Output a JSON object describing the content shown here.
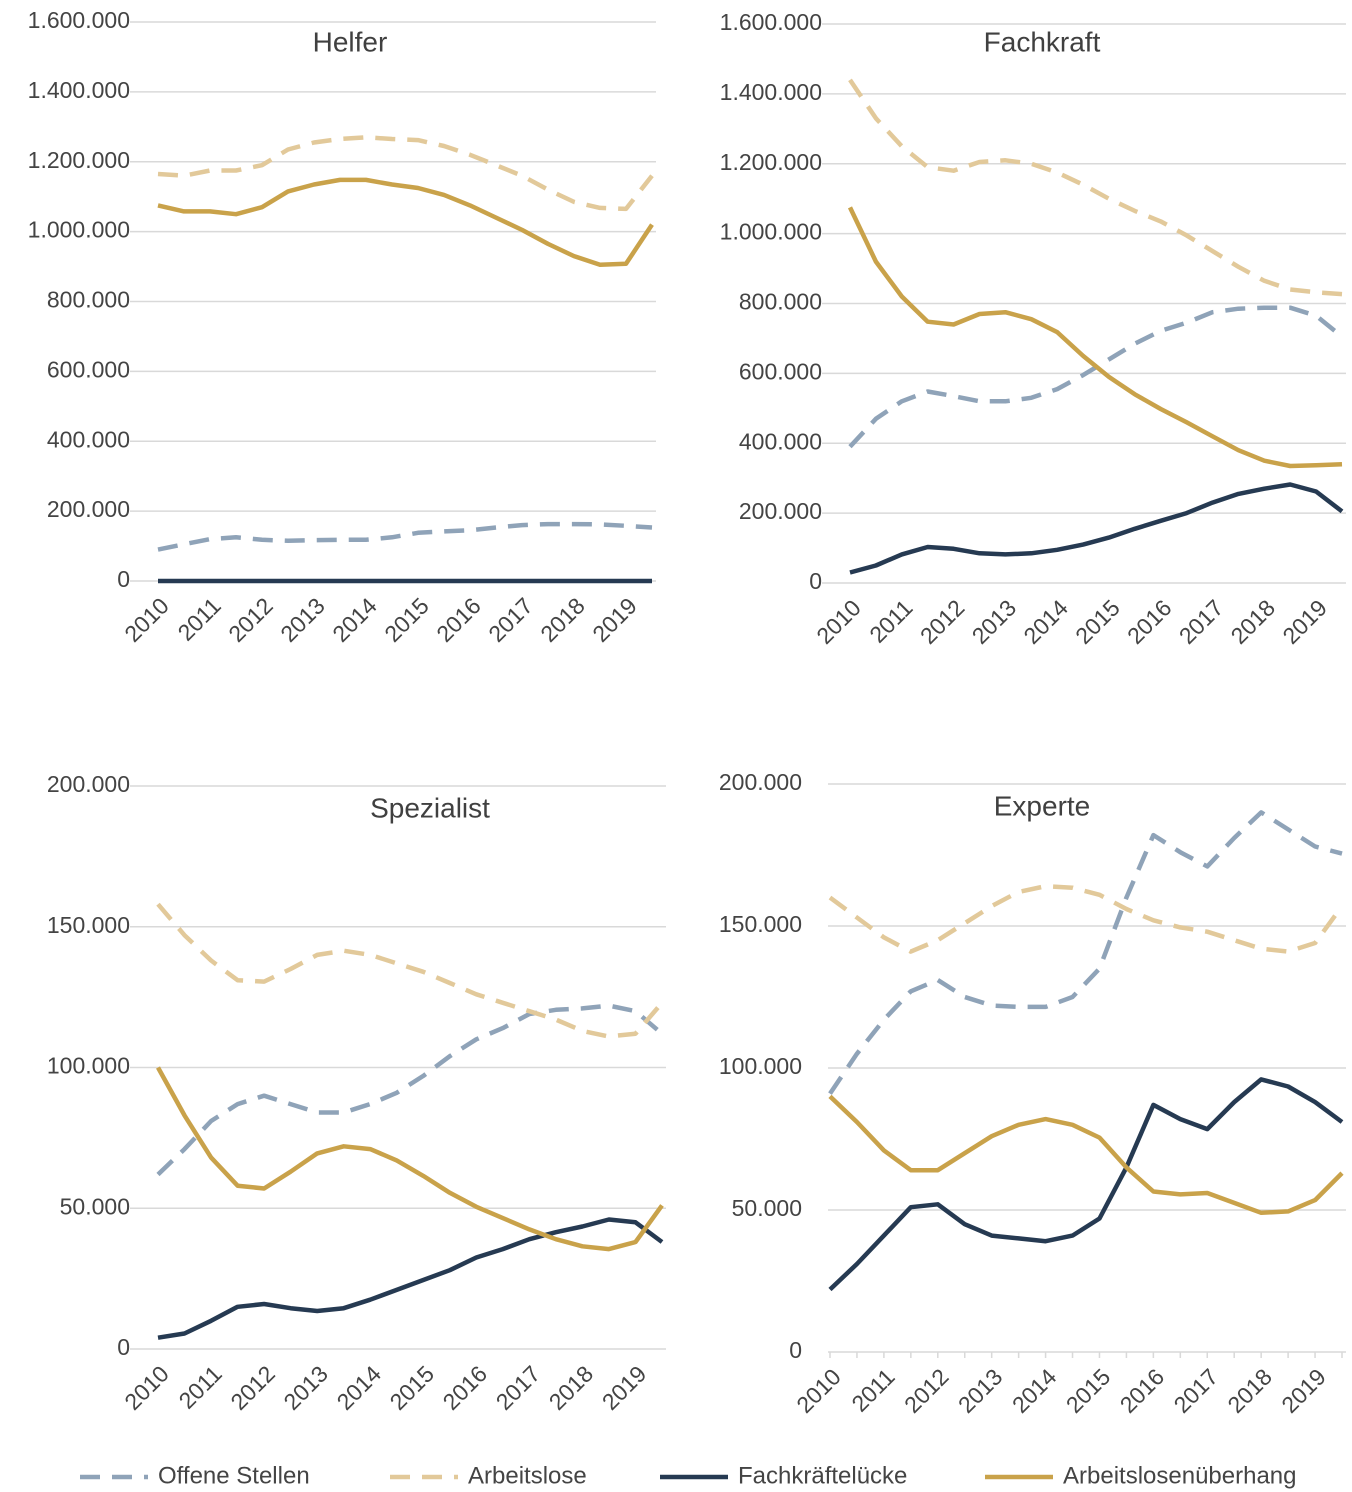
{
  "chart_data": [
    {
      "type": "line",
      "title": "Helfer",
      "categories": [
        "2010",
        null,
        "2011",
        null,
        "2012",
        null,
        "2013",
        null,
        "2014",
        null,
        "2015",
        null,
        "2016",
        null,
        "2017",
        null,
        "2018",
        null,
        "2019",
        null
      ],
      "ylim": [
        0,
        1600000
      ],
      "yticks": [
        0,
        {
          "value": 200000,
          "label": "200.000"
        },
        {
          "value": 400000,
          "label": "400.000"
        },
        {
          "value": 600000,
          "label": "600.000"
        },
        {
          "value": 800000,
          "label": "800.000"
        },
        {
          "value": 1000000,
          "label": "1.000.000"
        },
        {
          "value": 1200000,
          "label": "1.200.000"
        },
        {
          "value": 1400000,
          "label": "1.400.000"
        },
        {
          "value": 1600000,
          "label": "1.600.000"
        }
      ],
      "grid": true,
      "series": [
        {
          "name": "Offene Stellen",
          "color": "#8fa3b8",
          "dashed": true,
          "values": [
            90000,
            105000,
            120000,
            125000,
            118000,
            115000,
            117000,
            118000,
            118000,
            125000,
            138000,
            142000,
            145000,
            153000,
            160000,
            163000,
            163000,
            162000,
            158000,
            153000
          ]
        },
        {
          "name": "Arbeitslose",
          "color": "#e2c99a",
          "dashed": true,
          "values": [
            1165000,
            1160000,
            1175000,
            1175000,
            1190000,
            1235000,
            1255000,
            1265000,
            1270000,
            1265000,
            1262000,
            1245000,
            1220000,
            1190000,
            1160000,
            1120000,
            1085000,
            1068000,
            1065000,
            1160000
          ]
        },
        {
          "name": "Fachkräftelücke",
          "color": "#263a52",
          "dashed": false,
          "values": [
            0,
            0,
            0,
            0,
            0,
            0,
            0,
            0,
            0,
            0,
            0,
            0,
            0,
            0,
            0,
            0,
            0,
            0,
            0,
            0
          ]
        },
        {
          "name": "Arbeitslosenüberhang",
          "color": "#c9a24a",
          "dashed": false,
          "values": [
            1075000,
            1058000,
            1058000,
            1050000,
            1070000,
            1115000,
            1135000,
            1148000,
            1148000,
            1135000,
            1125000,
            1105000,
            1075000,
            1040000,
            1005000,
            965000,
            930000,
            905000,
            908000,
            1020000
          ]
        }
      ]
    },
    {
      "type": "line",
      "title": "Fachkraft",
      "categories": [
        "2010",
        null,
        "2011",
        null,
        "2012",
        null,
        "2013",
        null,
        "2014",
        null,
        "2015",
        null,
        "2016",
        null,
        "2017",
        null,
        "2018",
        null,
        "2019",
        null
      ],
      "ylim": [
        0,
        1600000
      ],
      "yticks": [
        0,
        {
          "value": 200000,
          "label": "200.000"
        },
        {
          "value": 400000,
          "label": "400.000"
        },
        {
          "value": 600000,
          "label": "600.000"
        },
        {
          "value": 800000,
          "label": "800.000"
        },
        {
          "value": 1000000,
          "label": "1.000.000"
        },
        {
          "value": 1200000,
          "label": "1.200.000"
        },
        {
          "value": 1400000,
          "label": "1.400.000"
        },
        {
          "value": 1600000,
          "label": "1.600.000"
        }
      ],
      "grid": true,
      "series": [
        {
          "name": "Offene Stellen",
          "color": "#8fa3b8",
          "dashed": true,
          "values": [
            390000,
            470000,
            520000,
            548000,
            535000,
            520000,
            520000,
            530000,
            555000,
            595000,
            640000,
            685000,
            722000,
            745000,
            775000,
            785000,
            788000,
            788000,
            765000,
            705000
          ]
        },
        {
          "name": "Arbeitslose",
          "color": "#e2c99a",
          "dashed": true,
          "values": [
            1440000,
            1330000,
            1250000,
            1190000,
            1180000,
            1205000,
            1210000,
            1200000,
            1175000,
            1140000,
            1100000,
            1065000,
            1035000,
            995000,
            950000,
            905000,
            865000,
            840000,
            832000,
            827000
          ]
        },
        {
          "name": "Fachkräftelücke",
          "color": "#263a52",
          "dashed": false,
          "values": [
            30000,
            50000,
            82000,
            103000,
            98000,
            85000,
            82000,
            85000,
            95000,
            110000,
            130000,
            155000,
            178000,
            200000,
            230000,
            255000,
            270000,
            282000,
            262000,
            205000
          ]
        },
        {
          "name": "Arbeitslosenüberhang",
          "color": "#c9a24a",
          "dashed": false,
          "values": [
            1075000,
            920000,
            820000,
            748000,
            740000,
            770000,
            775000,
            755000,
            718000,
            650000,
            590000,
            540000,
            498000,
            460000,
            420000,
            380000,
            350000,
            335000,
            337000,
            340000
          ]
        }
      ]
    },
    {
      "type": "line",
      "title": "Spezialist",
      "categories": [
        "2010",
        null,
        "2011",
        null,
        "2012",
        null,
        "2013",
        null,
        "2014",
        null,
        "2015",
        null,
        "2016",
        null,
        "2017",
        null,
        "2018",
        null,
        "2019",
        null
      ],
      "ylim": [
        0,
        200000
      ],
      "yticks": [
        0,
        {
          "value": 50000,
          "label": "50.000"
        },
        {
          "value": 100000,
          "label": "100.000"
        },
        {
          "value": 150000,
          "label": "150.000"
        },
        {
          "value": 200000,
          "label": "200.000"
        }
      ],
      "grid": true,
      "series": [
        {
          "name": "Offene Stellen",
          "color": "#8fa3b8",
          "dashed": true,
          "values": [
            62000,
            71000,
            81000,
            87000,
            90000,
            87000,
            84000,
            84000,
            87000,
            91000,
            97000,
            104000,
            110000,
            114000,
            119000,
            120500,
            121000,
            122000,
            120000,
            112000
          ]
        },
        {
          "name": "Arbeitslose",
          "color": "#e2c99a",
          "dashed": true,
          "values": [
            158000,
            147000,
            138000,
            131000,
            130500,
            135000,
            140000,
            141500,
            140000,
            137000,
            134000,
            130000,
            126000,
            123000,
            120000,
            117000,
            113000,
            111000,
            112000,
            123000
          ]
        },
        {
          "name": "Fachkräftelücke",
          "color": "#263a52",
          "dashed": false,
          "values": [
            4000,
            5500,
            10000,
            15000,
            16000,
            14500,
            13500,
            14500,
            17500,
            21000,
            24500,
            28000,
            32500,
            35500,
            39000,
            41500,
            43500,
            46000,
            45000,
            38000
          ]
        },
        {
          "name": "Arbeitslosenüberhang",
          "color": "#c9a24a",
          "dashed": false,
          "values": [
            100000,
            83000,
            68000,
            58000,
            57000,
            63000,
            69500,
            72000,
            71000,
            67000,
            61500,
            55500,
            50500,
            46500,
            42500,
            39000,
            36500,
            35500,
            38000,
            51000
          ]
        }
      ]
    },
    {
      "type": "line",
      "title": "Experte",
      "categories": [
        "2010",
        null,
        "2011",
        null,
        "2012",
        null,
        "2013",
        null,
        "2014",
        null,
        "2015",
        null,
        "2016",
        null,
        "2017",
        null,
        "2018",
        null,
        "2019",
        null
      ],
      "ylim": [
        0,
        200000
      ],
      "yticks": [
        0,
        {
          "value": 50000,
          "label": "50.000"
        },
        {
          "value": 100000,
          "label": "100.000"
        },
        {
          "value": 150000,
          "label": "150.000"
        },
        {
          "value": 200000,
          "label": "200.000"
        }
      ],
      "grid": true,
      "series": [
        {
          "name": "Offene Stellen",
          "color": "#8fa3b8",
          "dashed": true,
          "values": [
            91000,
            105000,
            117000,
            127000,
            131000,
            125000,
            122000,
            121500,
            121500,
            125000,
            135000,
            160000,
            182000,
            176000,
            171000,
            181000,
            190000,
            184000,
            178000,
            175500
          ]
        },
        {
          "name": "Arbeitslose",
          "color": "#e2c99a",
          "dashed": true,
          "values": [
            160000,
            153000,
            146000,
            141000,
            145000,
            151000,
            157000,
            162000,
            164000,
            163500,
            161000,
            156000,
            152000,
            149500,
            148000,
            145000,
            142000,
            141000,
            144000,
            157000
          ]
        },
        {
          "name": "Fachkräftelücke",
          "color": "#263a52",
          "dashed": false,
          "values": [
            22000,
            31000,
            41000,
            51000,
            52000,
            45000,
            41000,
            40000,
            39000,
            41000,
            47000,
            65000,
            87000,
            82000,
            78500,
            88000,
            96000,
            93500,
            88000,
            81000
          ]
        },
        {
          "name": "Arbeitslosenüberhang",
          "color": "#c9a24a",
          "dashed": false,
          "values": [
            90000,
            81000,
            71000,
            64000,
            64000,
            70000,
            76000,
            80000,
            82000,
            80000,
            75500,
            65000,
            56500,
            55500,
            56000,
            52500,
            49000,
            49500,
            53500,
            63000
          ]
        }
      ]
    }
  ]
}
